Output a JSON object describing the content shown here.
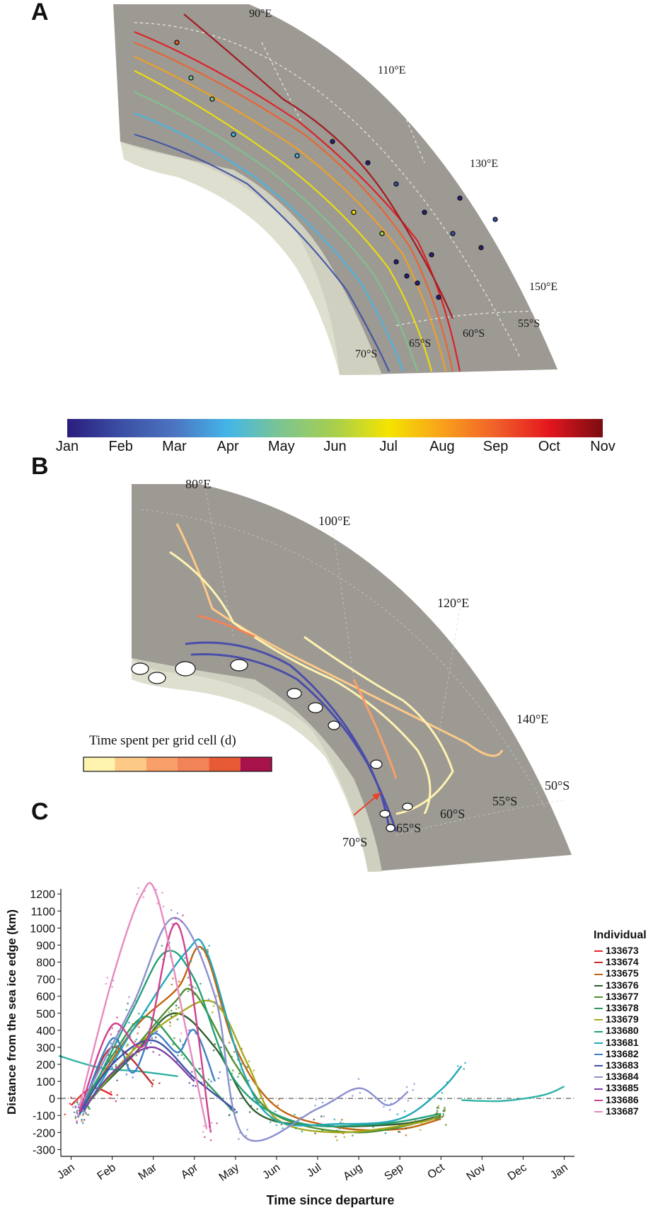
{
  "panels": {
    "a": {
      "letter": "A",
      "lon_labels": [
        "90°E",
        "110°E",
        "130°E",
        "150°E"
      ],
      "lat_labels": [
        "55°S",
        "60°S",
        "65°S",
        "70°S"
      ],
      "colorbar_months": [
        "Jan",
        "Feb",
        "Mar",
        "Apr",
        "May",
        "Jun",
        "Jul",
        "Aug",
        "Sep",
        "Oct",
        "Nov"
      ],
      "colorbar_colors": [
        "#2b1d7e",
        "#3b4fa4",
        "#4c74c0",
        "#43b6e8",
        "#7dc58f",
        "#a8cf4c",
        "#f4e400",
        "#f9a11b",
        "#f0602a",
        "#e4161e",
        "#7a0c12"
      ]
    },
    "b": {
      "letter": "B",
      "lon_labels": [
        "80°E",
        "100°E",
        "120°E",
        "140°E"
      ],
      "lat_labels": [
        "50°S",
        "55°S",
        "60°S",
        "65°S",
        "70°S"
      ],
      "legend_title": "Time spent per grid cell (d)",
      "legend_colors": [
        "#fff3b0",
        "#fdc987",
        "#f8a068",
        "#f28258",
        "#e85a34",
        "#a8124a"
      ]
    },
    "c": {
      "letter": "C",
      "legend_title": "Individual"
    }
  },
  "chart_data": {
    "type": "line",
    "xlabel": "Time since departure",
    "ylabel": "Distance from the sea ice edge (km)",
    "categories": [
      "Jan",
      "Feb",
      "Mar",
      "Apr",
      "May",
      "Jun",
      "Jul",
      "Aug",
      "Sep",
      "Oct",
      "Nov",
      "Dec",
      "Jan"
    ],
    "ylim": [
      -300,
      1200
    ],
    "yticks": [
      -300,
      -200,
      -100,
      0,
      100,
      200,
      300,
      400,
      500,
      600,
      700,
      800,
      900,
      1000,
      1100,
      1200
    ],
    "reference_line": 0,
    "series": [
      {
        "name": "133673",
        "color": "#e8242a",
        "x": [
          0.0,
          0.5,
          1.0
        ],
        "values": [
          -40,
          60,
          20
        ]
      },
      {
        "name": "133674",
        "color": "#c0302c",
        "x": [
          0.3,
          1.0,
          2.0
        ],
        "values": [
          -60,
          300,
          80
        ]
      },
      {
        "name": "133675",
        "color": "#c2620f",
        "x": [
          0.2,
          1.5,
          2.6,
          3.2,
          4.0,
          5.0,
          6.5,
          8.0,
          9.0
        ],
        "values": [
          -80,
          400,
          650,
          880,
          300,
          -50,
          -170,
          -180,
          -120
        ]
      },
      {
        "name": "133676",
        "color": "#2f5f2f",
        "x": [
          0.3,
          1.5,
          2.5,
          3.5,
          4.5,
          6.0,
          8.0,
          9.0
        ],
        "values": [
          -40,
          250,
          500,
          300,
          -80,
          -160,
          -150,
          -100
        ]
      },
      {
        "name": "133677",
        "color": "#4f8f2f",
        "x": [
          0.3,
          1.5,
          2.5,
          3.0,
          4.0,
          5.0,
          7.0,
          9.0
        ],
        "values": [
          -60,
          280,
          560,
          620,
          200,
          -100,
          -200,
          -110
        ]
      },
      {
        "name": "133678",
        "color": "#2c9a5a",
        "x": [
          0.2,
          1.0,
          1.8,
          2.6,
          3.2,
          4.0
        ],
        "values": [
          -70,
          250,
          480,
          300,
          120,
          -90
        ]
      },
      {
        "name": "133679",
        "color": "#a7a81e",
        "x": [
          0.3,
          1.5,
          2.5,
          3.5,
          4.3,
          5.0,
          6.5,
          8.5,
          9.0
        ],
        "values": [
          -50,
          280,
          480,
          560,
          200,
          -120,
          -200,
          -140,
          -90
        ]
      },
      {
        "name": "133680",
        "color": "#23a077",
        "x": [
          0.3,
          1.5,
          2.3,
          3.0,
          4.0,
          5.5,
          7.5,
          9.0
        ],
        "values": [
          -60,
          520,
          860,
          700,
          100,
          -140,
          -150,
          -90
        ]
      },
      {
        "name": "133681",
        "color": "#22a7b8",
        "x": [
          0.3,
          1.5,
          2.8,
          3.3,
          4.2,
          5.0,
          6.5,
          8.0,
          9.0,
          9.5
        ],
        "values": [
          -80,
          400,
          860,
          860,
          150,
          -130,
          -150,
          -120,
          50,
          190
        ]
      },
      {
        "name": "133682",
        "color": "#3e7fc6",
        "x": [
          0.2,
          1.0,
          1.5,
          2.0,
          2.6,
          3.0,
          3.5
        ],
        "values": [
          -100,
          350,
          150,
          380,
          270,
          400,
          100
        ]
      },
      {
        "name": "133683",
        "color": "#4150a8",
        "x": [
          0.2,
          1.0,
          2.0,
          3.0,
          4.0
        ],
        "values": [
          -90,
          200,
          340,
          120,
          -70
        ]
      },
      {
        "name": "133684",
        "color": "#8b8fcf",
        "x": [
          0.2,
          1.5,
          2.5,
          3.5,
          4.2,
          6.0,
          7.0,
          7.7,
          8.2
        ],
        "values": [
          -60,
          550,
          1060,
          600,
          -220,
          -60,
          60,
          -40,
          40
        ]
      },
      {
        "name": "133685",
        "color": "#7f3fa6",
        "x": [
          0.3,
          1.0,
          2.0,
          3.0
        ],
        "values": [
          -70,
          150,
          300,
          100
        ]
      },
      {
        "name": "133686",
        "color": "#d13f8c",
        "x": [
          0.2,
          1.0,
          1.8,
          2.6,
          3.4
        ],
        "values": [
          -80,
          430,
          320,
          1020,
          -200
        ]
      },
      {
        "name": "133687",
        "color": "#e68ac0",
        "x": [
          0.2,
          1.0,
          1.7,
          2.1,
          2.8,
          3.3
        ],
        "values": [
          -50,
          700,
          1190,
          1180,
          400,
          -180
        ]
      }
    ],
    "background_trend": {
      "color": "#31b3a4",
      "x": [
        -0.3,
        0.7,
        1.6,
        2.6
      ],
      "values": [
        250,
        180,
        160,
        130
      ]
    },
    "late_trend": {
      "color": "#31b3a4",
      "x": [
        9.5,
        10.5,
        11.5,
        12.0
      ],
      "values": [
        -10,
        -15,
        20,
        70
      ]
    }
  }
}
